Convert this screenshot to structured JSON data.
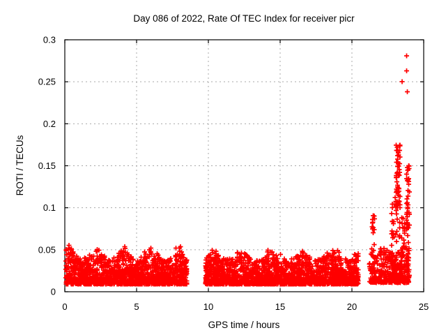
{
  "window": {
    "background": "#ffffff"
  },
  "chart_data": {
    "type": "scatter",
    "title": "Day 086 of 2022, Rate Of TEC Index for receiver picr",
    "xlabel": "GPS time / hours",
    "ylabel": "ROTI / TECUs",
    "xlim": [
      0,
      25
    ],
    "ylim": [
      0,
      0.3
    ],
    "xticks": [
      0,
      5,
      10,
      15,
      20,
      25
    ],
    "yticks": [
      0,
      0.05,
      0.1,
      0.15,
      0.2,
      0.25,
      0.3
    ],
    "grid": "dotted-major",
    "grid_color": "#a8a8a8",
    "frame_color": "#000000",
    "marker": "plus",
    "marker_color": "#ff0000",
    "marker_size": 7,
    "legend": "none",
    "seed": 20220086,
    "dense_segments": [
      {
        "x_start": 0.05,
        "x_end": 8.5,
        "count": 1500,
        "y_base": 0.009,
        "y_core": 0.03,
        "y_peak": 0.057,
        "tex_freq": 3.3,
        "tex_phase": 0.6
      },
      {
        "x_start": 9.8,
        "x_end": 20.45,
        "count": 1900,
        "y_base": 0.009,
        "y_core": 0.03,
        "y_peak": 0.055,
        "tex_freq": 3.0,
        "tex_phase": 2.1
      },
      {
        "x_start": 21.2,
        "x_end": 24.0,
        "count": 380,
        "y_base": 0.011,
        "y_core": 0.038,
        "y_peak": 0.062,
        "tex_freq": 4.0,
        "tex_phase": 0.4
      }
    ],
    "streaks": [
      {
        "x": 21.5,
        "x_spread": 0.12,
        "y_min": 0.03,
        "y_max": 0.095,
        "count": 20
      },
      {
        "x": 22.85,
        "x_spread": 0.1,
        "y_min": 0.02,
        "y_max": 0.105,
        "count": 24
      },
      {
        "x": 23.2,
        "x_spread": 0.15,
        "y_min": 0.03,
        "y_max": 0.175,
        "count": 60
      },
      {
        "x": 23.55,
        "x_spread": 0.12,
        "y_min": 0.02,
        "y_max": 0.09,
        "count": 24
      },
      {
        "x": 23.9,
        "x_spread": 0.1,
        "y_min": 0.02,
        "y_max": 0.15,
        "count": 42
      }
    ],
    "outliers": [
      [
        23.8,
        0.281
      ],
      [
        23.8,
        0.263
      ],
      [
        23.5,
        0.25
      ],
      [
        23.85,
        0.238
      ],
      [
        23.15,
        0.172
      ],
      [
        23.2,
        0.168
      ],
      [
        23.25,
        0.163
      ],
      [
        23.18,
        0.158
      ],
      [
        23.1,
        0.154
      ],
      [
        23.17,
        0.149
      ],
      [
        23.85,
        0.148
      ],
      [
        23.82,
        0.14
      ],
      [
        23.08,
        0.136
      ],
      [
        23.87,
        0.132
      ],
      [
        23.1,
        0.122
      ],
      [
        23.2,
        0.118
      ],
      [
        23.0,
        0.112
      ],
      [
        23.85,
        0.106
      ]
    ]
  }
}
